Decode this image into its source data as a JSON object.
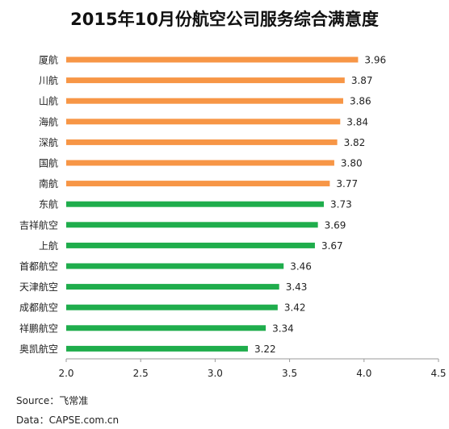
{
  "chart_data": {
    "type": "bar",
    "orientation": "horizontal",
    "title": "2015年10月份航空公司服务综合满意度",
    "categories": [
      "厦航",
      "川航",
      "山航",
      "海航",
      "深航",
      "国航",
      "南航",
      "东航",
      "吉祥航空",
      "上航",
      "首都航空",
      "天津航空",
      "成都航空",
      "祥鹏航空",
      "奥凯航空"
    ],
    "values": [
      3.96,
      3.87,
      3.86,
      3.84,
      3.82,
      3.8,
      3.77,
      3.73,
      3.69,
      3.67,
      3.46,
      3.43,
      3.42,
      3.34,
      3.22
    ],
    "value_labels": [
      "3.96",
      "3.87",
      "3.86",
      "3.84",
      "3.82",
      "3.80",
      "3.77",
      "3.73",
      "3.69",
      "3.67",
      "3.46",
      "3.43",
      "3.42",
      "3.34",
      "3.22"
    ],
    "xlim": [
      2.0,
      4.5
    ],
    "xticks": [
      "2.0",
      "2.5",
      "3.0",
      "3.5",
      "4.0",
      "4.5"
    ],
    "bar_colors": [
      "#f79646",
      "#f79646",
      "#f79646",
      "#f79646",
      "#f79646",
      "#f79646",
      "#f79646",
      "#1fad4c",
      "#1fad4c",
      "#1fad4c",
      "#1fad4c",
      "#1fad4c",
      "#1fad4c",
      "#1fad4c",
      "#1fad4c"
    ],
    "grid": false,
    "xlabel": "",
    "ylabel": ""
  },
  "footer": {
    "source": "Source：飞常准",
    "data": "Data：CAPSE.com.cn"
  }
}
